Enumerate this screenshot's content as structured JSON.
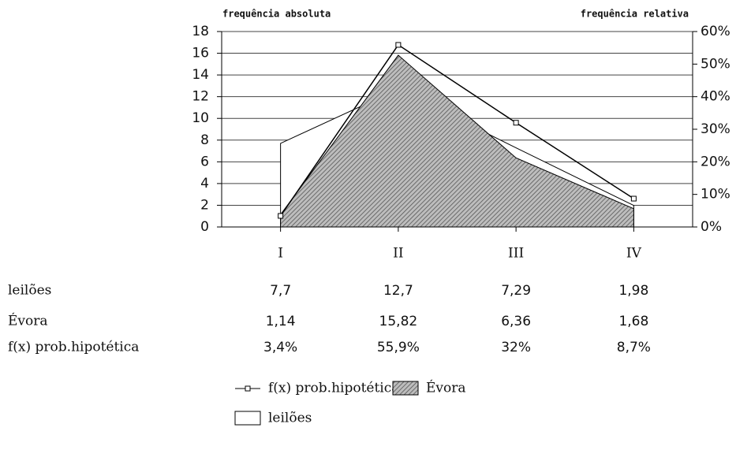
{
  "chart_data": {
    "type": "area",
    "y_label": "frequência absoluta",
    "y2_label": "frequência relativa",
    "categories": [
      "I",
      "II",
      "III",
      "IV"
    ],
    "series": [
      {
        "name": "leilões",
        "kind": "area",
        "color": "#ffffff",
        "values": [
          7.7,
          12.7,
          7.29,
          1.98
        ],
        "value_labels": [
          "7,7",
          "12,7",
          "7,29",
          "1,98"
        ]
      },
      {
        "name": "Évora",
        "kind": "area",
        "color": "#8a8a8a",
        "values": [
          1.14,
          15.82,
          6.36,
          1.68
        ],
        "value_labels": [
          "1,14",
          "15,82",
          "6,36",
          "1,68"
        ]
      },
      {
        "name": "f(x) prob.hipotética",
        "kind": "line",
        "axis": "y2",
        "color": "#000000",
        "values": [
          3.4,
          55.9,
          32,
          8.7
        ],
        "value_labels": [
          "3,4%",
          "55,9%",
          "32%",
          "8,7%"
        ]
      }
    ],
    "ylim": [
      0,
      18
    ],
    "yticks": [
      0,
      2,
      4,
      6,
      8,
      10,
      12,
      14,
      16,
      18
    ],
    "y2lim": [
      0,
      60
    ],
    "y2ticks": [
      {
        "value": 0,
        "label": "0%"
      },
      {
        "value": 10,
        "label": "10%"
      },
      {
        "value": 20,
        "label": "20%"
      },
      {
        "value": 30,
        "label": "30%"
      },
      {
        "value": 40,
        "label": "40%"
      },
      {
        "value": 50,
        "label": "50%"
      },
      {
        "value": 60,
        "label": "60%"
      }
    ],
    "grid": true
  }
}
